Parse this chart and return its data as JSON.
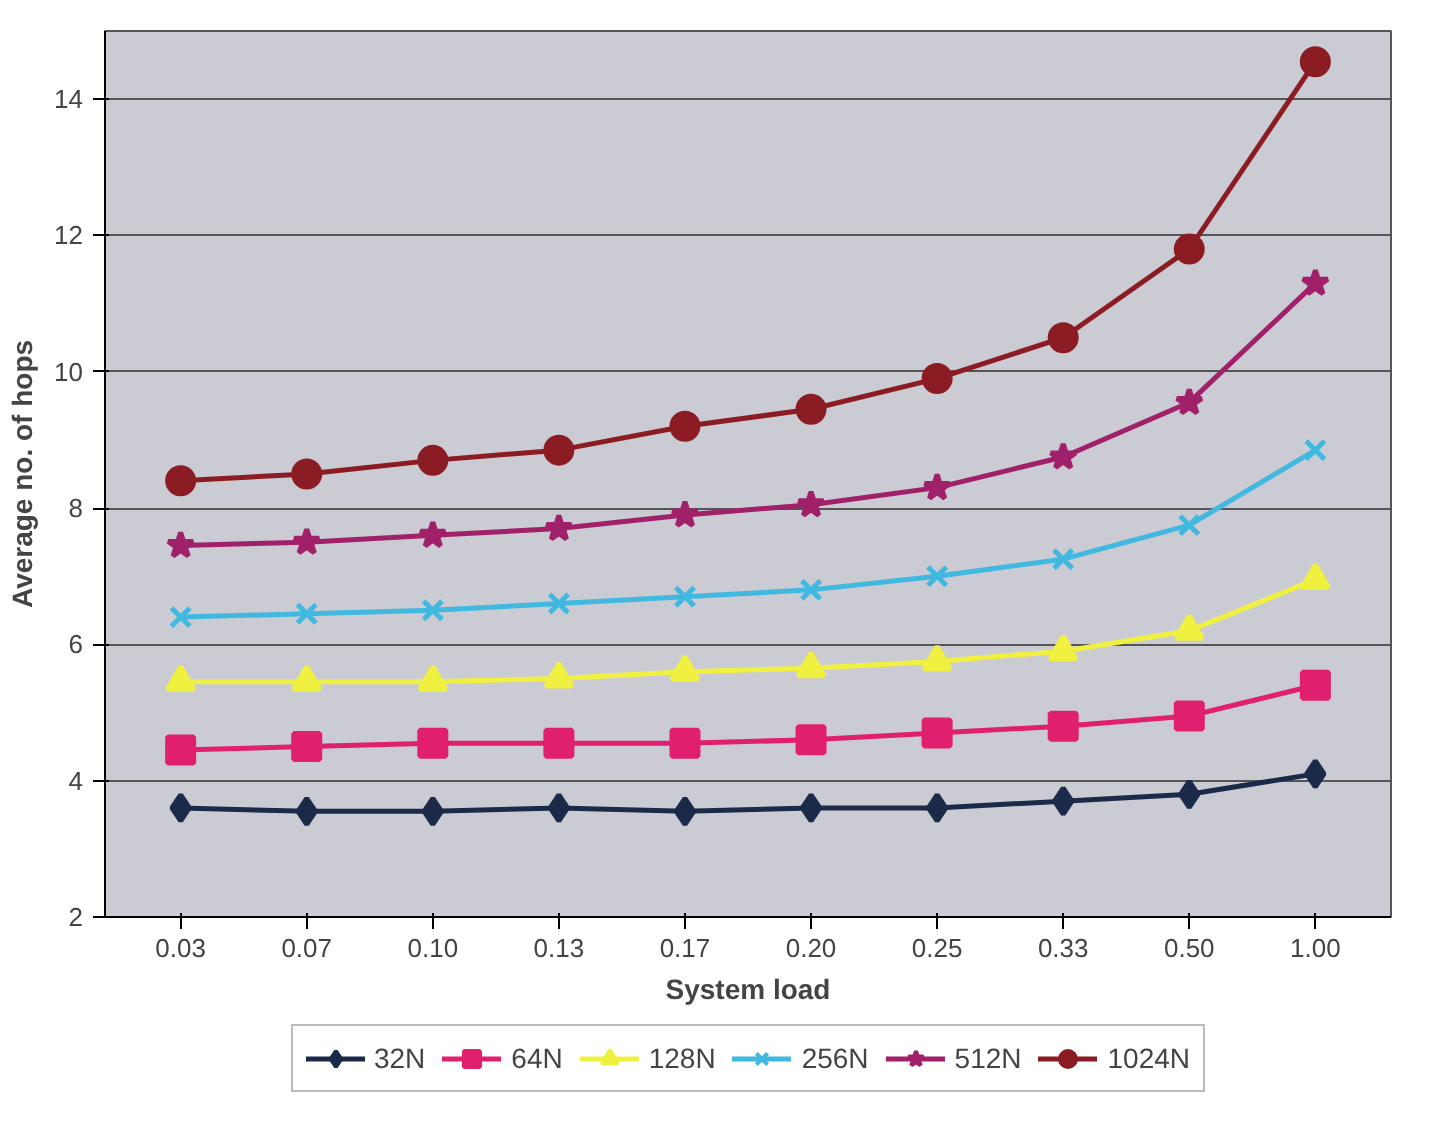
{
  "chart_data": {
    "type": "line",
    "xlabel": "System load",
    "ylabel": "Average no. of hops",
    "categories": [
      "0.03",
      "0.07",
      "0.10",
      "0.13",
      "0.17",
      "0.20",
      "0.25",
      "0.33",
      "0.50",
      "1.00"
    ],
    "ylim": [
      2,
      15
    ],
    "yticks": [
      2,
      4,
      6,
      8,
      10,
      12,
      14
    ],
    "grid": "y",
    "legend": "bottom",
    "series": [
      {
        "name": "32N",
        "color": "#1c2a4a",
        "marker": "diamond",
        "values": [
          3.6,
          3.55,
          3.55,
          3.6,
          3.55,
          3.6,
          3.6,
          3.7,
          3.8,
          4.1
        ]
      },
      {
        "name": "64N",
        "color": "#e0206e",
        "marker": "square",
        "values": [
          4.45,
          4.5,
          4.55,
          4.55,
          4.55,
          4.6,
          4.7,
          4.8,
          4.95,
          5.4
        ]
      },
      {
        "name": "128N",
        "color": "#f0f040",
        "marker": "triangle",
        "values": [
          5.45,
          5.45,
          5.45,
          5.5,
          5.6,
          5.65,
          5.75,
          5.9,
          6.2,
          6.95
        ]
      },
      {
        "name": "256N",
        "color": "#40b8e0",
        "marker": "cross",
        "values": [
          6.4,
          6.45,
          6.5,
          6.6,
          6.7,
          6.8,
          7.0,
          7.25,
          7.75,
          8.85
        ]
      },
      {
        "name": "512N",
        "color": "#a0206a",
        "marker": "star",
        "values": [
          7.45,
          7.5,
          7.6,
          7.7,
          7.9,
          8.05,
          8.3,
          8.75,
          9.55,
          11.3
        ]
      },
      {
        "name": "1024N",
        "color": "#8c1c24",
        "marker": "circle",
        "values": [
          8.4,
          8.5,
          8.7,
          8.85,
          9.2,
          9.45,
          9.9,
          10.5,
          11.8,
          14.55
        ]
      }
    ]
  }
}
